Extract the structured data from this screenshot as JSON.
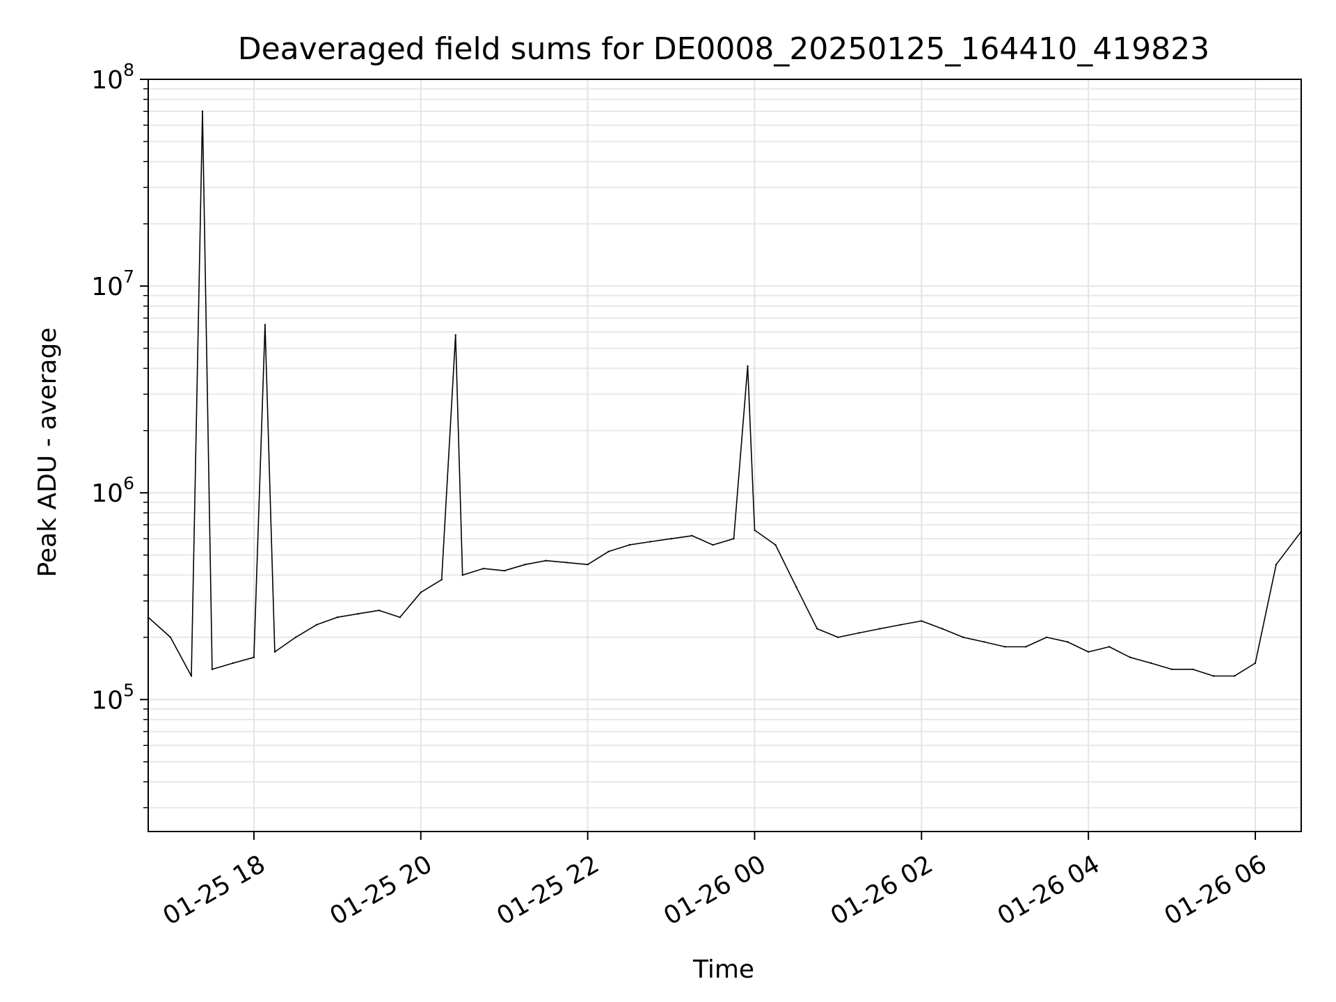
{
  "chart_data": {
    "type": "line",
    "title": "Deaveraged field sums for DE0008_20250125_164410_419823",
    "xlabel": "Time",
    "ylabel": "Peak ADU - average",
    "y_scale": "log",
    "ylim": [
      23000,
      100000000
    ],
    "xlim": [
      "2025-01-25 16:44",
      "2025-01-26 06:33"
    ],
    "grid": "on (major and minor)",
    "x_ticks": [
      {
        "label": "01-25 18",
        "value": "2025-01-25 18:00"
      },
      {
        "label": "01-25 20",
        "value": "2025-01-25 20:00"
      },
      {
        "label": "01-25 22",
        "value": "2025-01-25 22:00"
      },
      {
        "label": "01-26 00",
        "value": "2025-01-26 00:00"
      },
      {
        "label": "01-26 02",
        "value": "2025-01-26 02:00"
      },
      {
        "label": "01-26 04",
        "value": "2025-01-26 04:00"
      },
      {
        "label": "01-26 06",
        "value": "2025-01-26 06:00"
      }
    ],
    "y_ticks": [
      {
        "base": "10",
        "exp": "5",
        "value": 100000
      },
      {
        "base": "10",
        "exp": "6",
        "value": 1000000
      },
      {
        "base": "10",
        "exp": "7",
        "value": 10000000
      },
      {
        "base": "10",
        "exp": "8",
        "value": 100000000
      }
    ],
    "series": [
      {
        "color": "#000000",
        "x": [
          "2025-01-25 16:44",
          "2025-01-25 17:00",
          "2025-01-25 17:15",
          "2025-01-25 17:23",
          "2025-01-25 17:30",
          "2025-01-25 17:45",
          "2025-01-25 18:00",
          "2025-01-25 18:08",
          "2025-01-25 18:15",
          "2025-01-25 18:30",
          "2025-01-25 18:45",
          "2025-01-25 19:00",
          "2025-01-25 19:15",
          "2025-01-25 19:30",
          "2025-01-25 19:45",
          "2025-01-25 20:00",
          "2025-01-25 20:15",
          "2025-01-25 20:25",
          "2025-01-25 20:30",
          "2025-01-25 20:45",
          "2025-01-25 21:00",
          "2025-01-25 21:15",
          "2025-01-25 21:30",
          "2025-01-25 21:45",
          "2025-01-25 22:00",
          "2025-01-25 22:15",
          "2025-01-25 22:30",
          "2025-01-25 22:45",
          "2025-01-25 23:00",
          "2025-01-25 23:15",
          "2025-01-25 23:30",
          "2025-01-25 23:45",
          "2025-01-25 23:55",
          "2025-01-26 00:00",
          "2025-01-26 00:15",
          "2025-01-26 00:30",
          "2025-01-26 00:45",
          "2025-01-26 01:00",
          "2025-01-26 01:15",
          "2025-01-26 01:30",
          "2025-01-26 01:45",
          "2025-01-26 02:00",
          "2025-01-26 02:15",
          "2025-01-26 02:30",
          "2025-01-26 02:45",
          "2025-01-26 03:00",
          "2025-01-26 03:15",
          "2025-01-26 03:30",
          "2025-01-26 03:45",
          "2025-01-26 04:00",
          "2025-01-26 04:15",
          "2025-01-26 04:30",
          "2025-01-26 04:45",
          "2025-01-26 05:00",
          "2025-01-26 05:15",
          "2025-01-26 05:30",
          "2025-01-26 05:45",
          "2025-01-26 06:00",
          "2025-01-26 06:15",
          "2025-01-26 06:33"
        ],
        "y": [
          250000,
          200000,
          130000,
          70000000,
          140000,
          150000,
          160000,
          6500000,
          170000,
          200000,
          230000,
          250000,
          260000,
          270000,
          250000,
          330000,
          380000,
          5800000,
          400000,
          430000,
          420000,
          450000,
          470000,
          460000,
          450000,
          520000,
          560000,
          580000,
          600000,
          620000,
          560000,
          600000,
          4100000,
          660000,
          560000,
          350000,
          220000,
          200000,
          210000,
          220000,
          230000,
          240000,
          220000,
          200000,
          190000,
          180000,
          180000,
          200000,
          190000,
          170000,
          180000,
          160000,
          150000,
          140000,
          140000,
          130000,
          130000,
          150000,
          450000,
          650000
        ]
      }
    ]
  }
}
